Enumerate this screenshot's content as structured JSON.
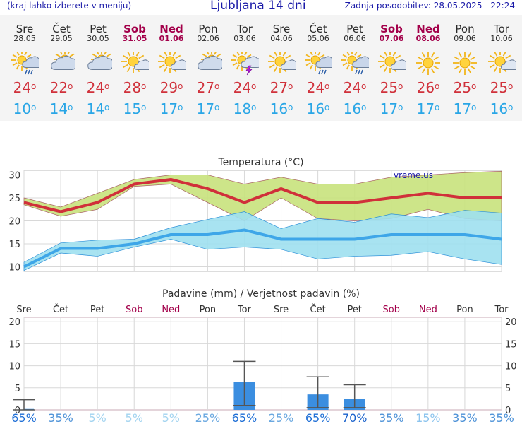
{
  "header": {
    "hint": "(kraj lahko izberete v meniju)",
    "title": "Ljubljana 14 dni",
    "updated": "Zadnja posodobitev: 28.05.2025 - 22:24"
  },
  "days": [
    {
      "name": "Sre",
      "date": "28.05",
      "weekend": false,
      "icon": "sun-cloud-rain-icon",
      "tmax": "24",
      "tmin": "10"
    },
    {
      "name": "Čet",
      "date": "29.05",
      "weekend": false,
      "icon": "sun-cloud-icon",
      "tmax": "22",
      "tmin": "14"
    },
    {
      "name": "Pet",
      "date": "30.05",
      "weekend": false,
      "icon": "sun-cloud-icon",
      "tmax": "24",
      "tmin": "14"
    },
    {
      "name": "Sob",
      "date": "31.05",
      "weekend": true,
      "icon": "sun-small-cloud-icon",
      "tmax": "28",
      "tmin": "15"
    },
    {
      "name": "Ned",
      "date": "01.06",
      "weekend": true,
      "icon": "sun-small-cloud-icon",
      "tmax": "29",
      "tmin": "17"
    },
    {
      "name": "Pon",
      "date": "02.06",
      "weekend": false,
      "icon": "sun-cloud-icon",
      "tmax": "27",
      "tmin": "17"
    },
    {
      "name": "Tor",
      "date": "03.06",
      "weekend": false,
      "icon": "sun-cloud-thunder-icon",
      "tmax": "24",
      "tmin": "18"
    },
    {
      "name": "Sre",
      "date": "04.06",
      "weekend": false,
      "icon": "sun-small-cloud-icon",
      "tmax": "27",
      "tmin": "16"
    },
    {
      "name": "Čet",
      "date": "05.06",
      "weekend": false,
      "icon": "sun-cloud-rain-icon",
      "tmax": "24",
      "tmin": "16"
    },
    {
      "name": "Pet",
      "date": "06.06",
      "weekend": false,
      "icon": "sun-cloud-rain-icon",
      "tmax": "24",
      "tmin": "16"
    },
    {
      "name": "Sob",
      "date": "07.06",
      "weekend": true,
      "icon": "sun-small-cloud-icon",
      "tmax": "25",
      "tmin": "17"
    },
    {
      "name": "Ned",
      "date": "08.06",
      "weekend": true,
      "icon": "sun-icon",
      "tmax": "26",
      "tmin": "17"
    },
    {
      "name": "Pon",
      "date": "09.06",
      "weekend": false,
      "icon": "sun-icon",
      "tmax": "25",
      "tmin": "17"
    },
    {
      "name": "Tor",
      "date": "10.06",
      "weekend": false,
      "icon": "sun-small-cloud-icon",
      "tmax": "25",
      "tmin": "16"
    }
  ],
  "chart_data": [
    {
      "type": "line",
      "title": "Temperatura (°C)",
      "watermark": "vreme.us",
      "ylim": [
        9,
        31
      ],
      "yticks": [
        10,
        15,
        20,
        25,
        30
      ],
      "grid": true,
      "categories": [
        "28.05",
        "29.05",
        "30.05",
        "31.05",
        "01.06",
        "02.06",
        "03.06",
        "04.06",
        "05.06",
        "06.06",
        "07.06",
        "08.06",
        "09.06",
        "10.06"
      ],
      "series": [
        {
          "role": "max",
          "color": "#d0303a",
          "values": [
            24,
            22,
            24,
            28,
            29,
            27,
            24,
            27,
            24,
            24,
            25,
            26,
            25,
            25
          ]
        },
        {
          "role": "max_upper",
          "color": "#c8e27c",
          "values": [
            25,
            23,
            26,
            29,
            30,
            30,
            28,
            29.5,
            28,
            28,
            29.5,
            30,
            30.5,
            30.8
          ]
        },
        {
          "role": "max_lower",
          "color": "#c8e27c",
          "values": [
            23.5,
            21,
            22.5,
            27.5,
            28,
            24,
            20,
            25,
            20.5,
            20,
            20.5,
            22.5,
            20.5,
            20
          ]
        },
        {
          "role": "min",
          "color": "#3ea6e8",
          "values": [
            10,
            14,
            14,
            15,
            17,
            17,
            18,
            16,
            16,
            16,
            17,
            17,
            17,
            16
          ]
        },
        {
          "role": "min_upper",
          "color": "#9ee0f0",
          "values": [
            11,
            15.2,
            15.8,
            16,
            18.5,
            20.3,
            22,
            18.3,
            20.5,
            19.7,
            21.5,
            20.7,
            22.3,
            21.7
          ]
        },
        {
          "role": "min_lower",
          "color": "#9ee0f0",
          "values": [
            9.2,
            13,
            12.3,
            14.3,
            16,
            13.8,
            14.3,
            13.8,
            11.7,
            12.3,
            12.5,
            13.3,
            11.7,
            10.5
          ]
        }
      ]
    },
    {
      "type": "bar",
      "title": "Padavine (mm) / Verjetnost padavin (%)",
      "ylim": [
        0,
        21
      ],
      "yticks": [
        0,
        5,
        10,
        15,
        20
      ],
      "grid": true,
      "categories": [
        "Sre",
        "Čet",
        "Pet",
        "Sob",
        "Ned",
        "Pon",
        "Tor",
        "Sre",
        "Čet",
        "Pet",
        "Sob",
        "Ned",
        "Pon",
        "Tor"
      ],
      "category_weekend": [
        false,
        false,
        false,
        true,
        true,
        false,
        false,
        false,
        false,
        false,
        true,
        true,
        false,
        false
      ],
      "values": [
        0.2,
        0,
        0,
        0,
        0,
        0,
        6.3,
        0,
        3.5,
        2.5,
        0,
        0,
        0,
        0
      ],
      "error_low": [
        0,
        0,
        0,
        0,
        0,
        0,
        1,
        0,
        0.5,
        0.5,
        0,
        0,
        0,
        0
      ],
      "error_high": [
        2.3,
        0,
        0,
        0,
        0,
        0,
        11,
        0,
        7.5,
        5.7,
        0,
        0,
        0,
        0
      ],
      "probabilities": [
        "65%",
        "35%",
        "5%",
        "5%",
        "5%",
        "25%",
        "65%",
        "25%",
        "65%",
        "70%",
        "35%",
        "15%",
        "35%",
        "35%"
      ],
      "probability_colors": [
        "#1f6fd6",
        "#4f93d8",
        "#a3d4f0",
        "#a3d4f0",
        "#a3d4f0",
        "#6aa8e0",
        "#1f6fd6",
        "#6aa8e0",
        "#1f6fd6",
        "#1a62cc",
        "#4f93d8",
        "#8cc4ee",
        "#4f93d8",
        "#4f93d8"
      ],
      "bar_color": "#3b8ee0"
    }
  ]
}
